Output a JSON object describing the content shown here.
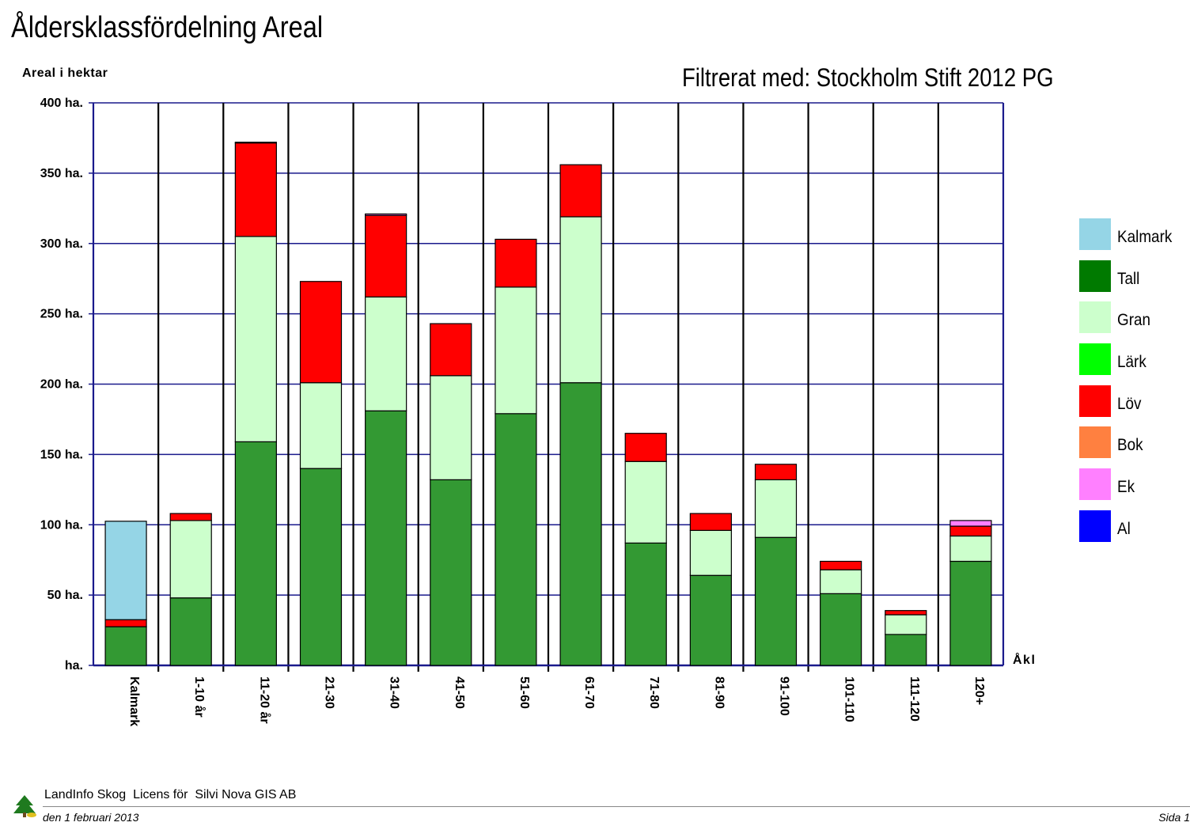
{
  "title": "Åldersklassfördelning Areal",
  "filter_text": "Filtrerat med: Stockholm Stift 2012 PG",
  "colors": {
    "grid": "#1a1a8c",
    "separator": "#000000",
    "Kalmark": "#95d5e6",
    "Tall": "#007a00",
    "Gran": "#ccffcc",
    "Lärk": "#00ff00",
    "Löv": "#ff0000",
    "Bok": "#ff8040",
    "Ek": "#ff80ff",
    "Al": "#0000ff",
    "Tall_bar": "#339933"
  },
  "chart_data": {
    "type": "bar",
    "stacked": true,
    "ylabel": "Areal i hektar",
    "xlabel": "Åkl",
    "ylim": [
      0,
      400
    ],
    "y_ticks": [
      {
        "value": 0,
        "label": "ha."
      },
      {
        "value": 50,
        "label": "50 ha."
      },
      {
        "value": 100,
        "label": "100 ha."
      },
      {
        "value": 150,
        "label": "150 ha."
      },
      {
        "value": 200,
        "label": "200 ha."
      },
      {
        "value": 250,
        "label": "250 ha."
      },
      {
        "value": 300,
        "label": "300 ha."
      },
      {
        "value": 350,
        "label": "350 ha."
      },
      {
        "value": 400,
        "label": "400 ha."
      }
    ],
    "grid": true,
    "legend_position": "right",
    "categories": [
      "Kalmark",
      "1-10 år",
      "11-20 år",
      "21-30",
      "31-40",
      "41-50",
      "51-60",
      "61-70",
      "71-80",
      "81-90",
      "91-100",
      "101-110",
      "111-120",
      "120+"
    ],
    "series": [
      {
        "name": "Kalmark",
        "values": [
          0,
          0,
          0,
          0,
          0,
          0,
          0,
          0,
          0,
          0,
          0,
          0,
          0,
          0
        ]
      },
      {
        "name": "Tall",
        "values": [
          27.5,
          48,
          159,
          140,
          181,
          132,
          179,
          201,
          87,
          64,
          91,
          51,
          22,
          74
        ]
      },
      {
        "name": "Gran",
        "values": [
          0,
          55,
          146,
          61,
          81,
          74,
          90,
          118,
          58,
          32,
          41,
          17,
          14,
          18
        ]
      },
      {
        "name": "Lärk",
        "values": [
          0,
          0,
          0,
          0,
          0,
          0,
          0,
          0,
          0,
          0,
          0,
          0,
          0,
          0
        ]
      },
      {
        "name": "Löv",
        "values": [
          5,
          5,
          66.5,
          72,
          58,
          37,
          34,
          37,
          20,
          12,
          11,
          6,
          3,
          7
        ]
      },
      {
        "name": "Bok",
        "values": [
          0,
          0,
          0,
          0,
          0,
          0,
          0,
          0,
          0,
          0,
          0,
          0,
          0,
          0
        ]
      },
      {
        "name": "Ek",
        "values": [
          0,
          0,
          0.5,
          0,
          1,
          0,
          0,
          0,
          0,
          0,
          0,
          0,
          0,
          4
        ]
      },
      {
        "name": "Al",
        "values": [
          0,
          0,
          0,
          0,
          0,
          0,
          0,
          0,
          0,
          0,
          0,
          0,
          0,
          0
        ]
      }
    ],
    "kalmark_values": [
      70,
      0,
      0,
      0,
      0,
      0,
      0,
      0,
      0,
      0,
      0,
      0,
      0,
      0
    ]
  },
  "legend": [
    {
      "name": "Kalmark",
      "color": "#95d5e6"
    },
    {
      "name": "Tall",
      "color": "#007a00"
    },
    {
      "name": "Gran",
      "color": "#ccffcc"
    },
    {
      "name": "Lärk",
      "color": "#00ff00"
    },
    {
      "name": "Löv",
      "color": "#ff0000"
    },
    {
      "name": "Bok",
      "color": "#ff8040"
    },
    {
      "name": "Ek",
      "color": "#ff80ff"
    },
    {
      "name": "Al",
      "color": "#0000ff"
    }
  ],
  "footer": {
    "license": "LandInfo Skog  Licens för  Silvi Nova GIS AB",
    "date": "den 1 februari 2013",
    "page": "Sida 1"
  }
}
